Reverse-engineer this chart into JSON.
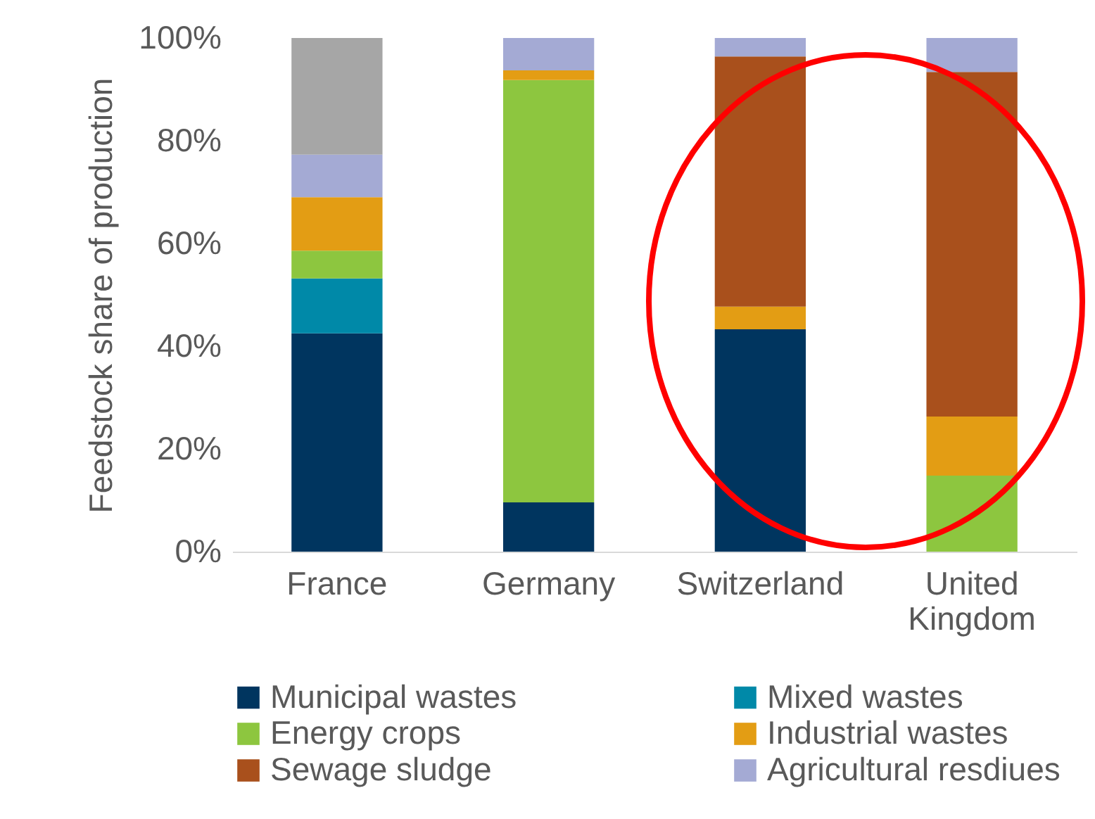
{
  "chart_data": {
    "type": "bar",
    "stacked": true,
    "ylabel": "Feedstock share of production",
    "categories": [
      "France",
      "Germany",
      "Switzerland",
      "United Kingdom"
    ],
    "series": [
      {
        "name": "Municipal wastes",
        "color": "#00355f",
        "values": [
          42.5,
          9.6,
          43.3,
          0
        ]
      },
      {
        "name": "Mixed wastes",
        "color": "#0089a8",
        "values": [
          10.7,
          0,
          0,
          0
        ]
      },
      {
        "name": "Energy crops",
        "color": "#8dc63f",
        "values": [
          5.4,
          82.2,
          0,
          14.8
        ]
      },
      {
        "name": "Industrial wastes",
        "color": "#e39d14",
        "values": [
          10.4,
          1.9,
          4.4,
          11.5
        ]
      },
      {
        "name": "Sewage sludge",
        "color": "#a9501c",
        "values": [
          0,
          0,
          48.7,
          67.1
        ]
      },
      {
        "name": "Agricultural resdiues",
        "color": "#a4aad4",
        "values": [
          8.3,
          6.3,
          3.6,
          6.6
        ]
      },
      {
        "color": "#a6a6a6",
        "values": [
          22.7,
          0,
          0,
          0
        ]
      }
    ],
    "ylim": [
      0,
      100
    ],
    "yticks": [
      {
        "value": 0,
        "label": "0%"
      },
      {
        "value": 20,
        "label": "20%"
      },
      {
        "value": 40,
        "label": "40%"
      },
      {
        "value": 60,
        "label": "60%"
      },
      {
        "value": 80,
        "label": "80%"
      },
      {
        "value": 100,
        "label": "100%"
      }
    ],
    "grid": false,
    "legend": "bottom"
  }
}
